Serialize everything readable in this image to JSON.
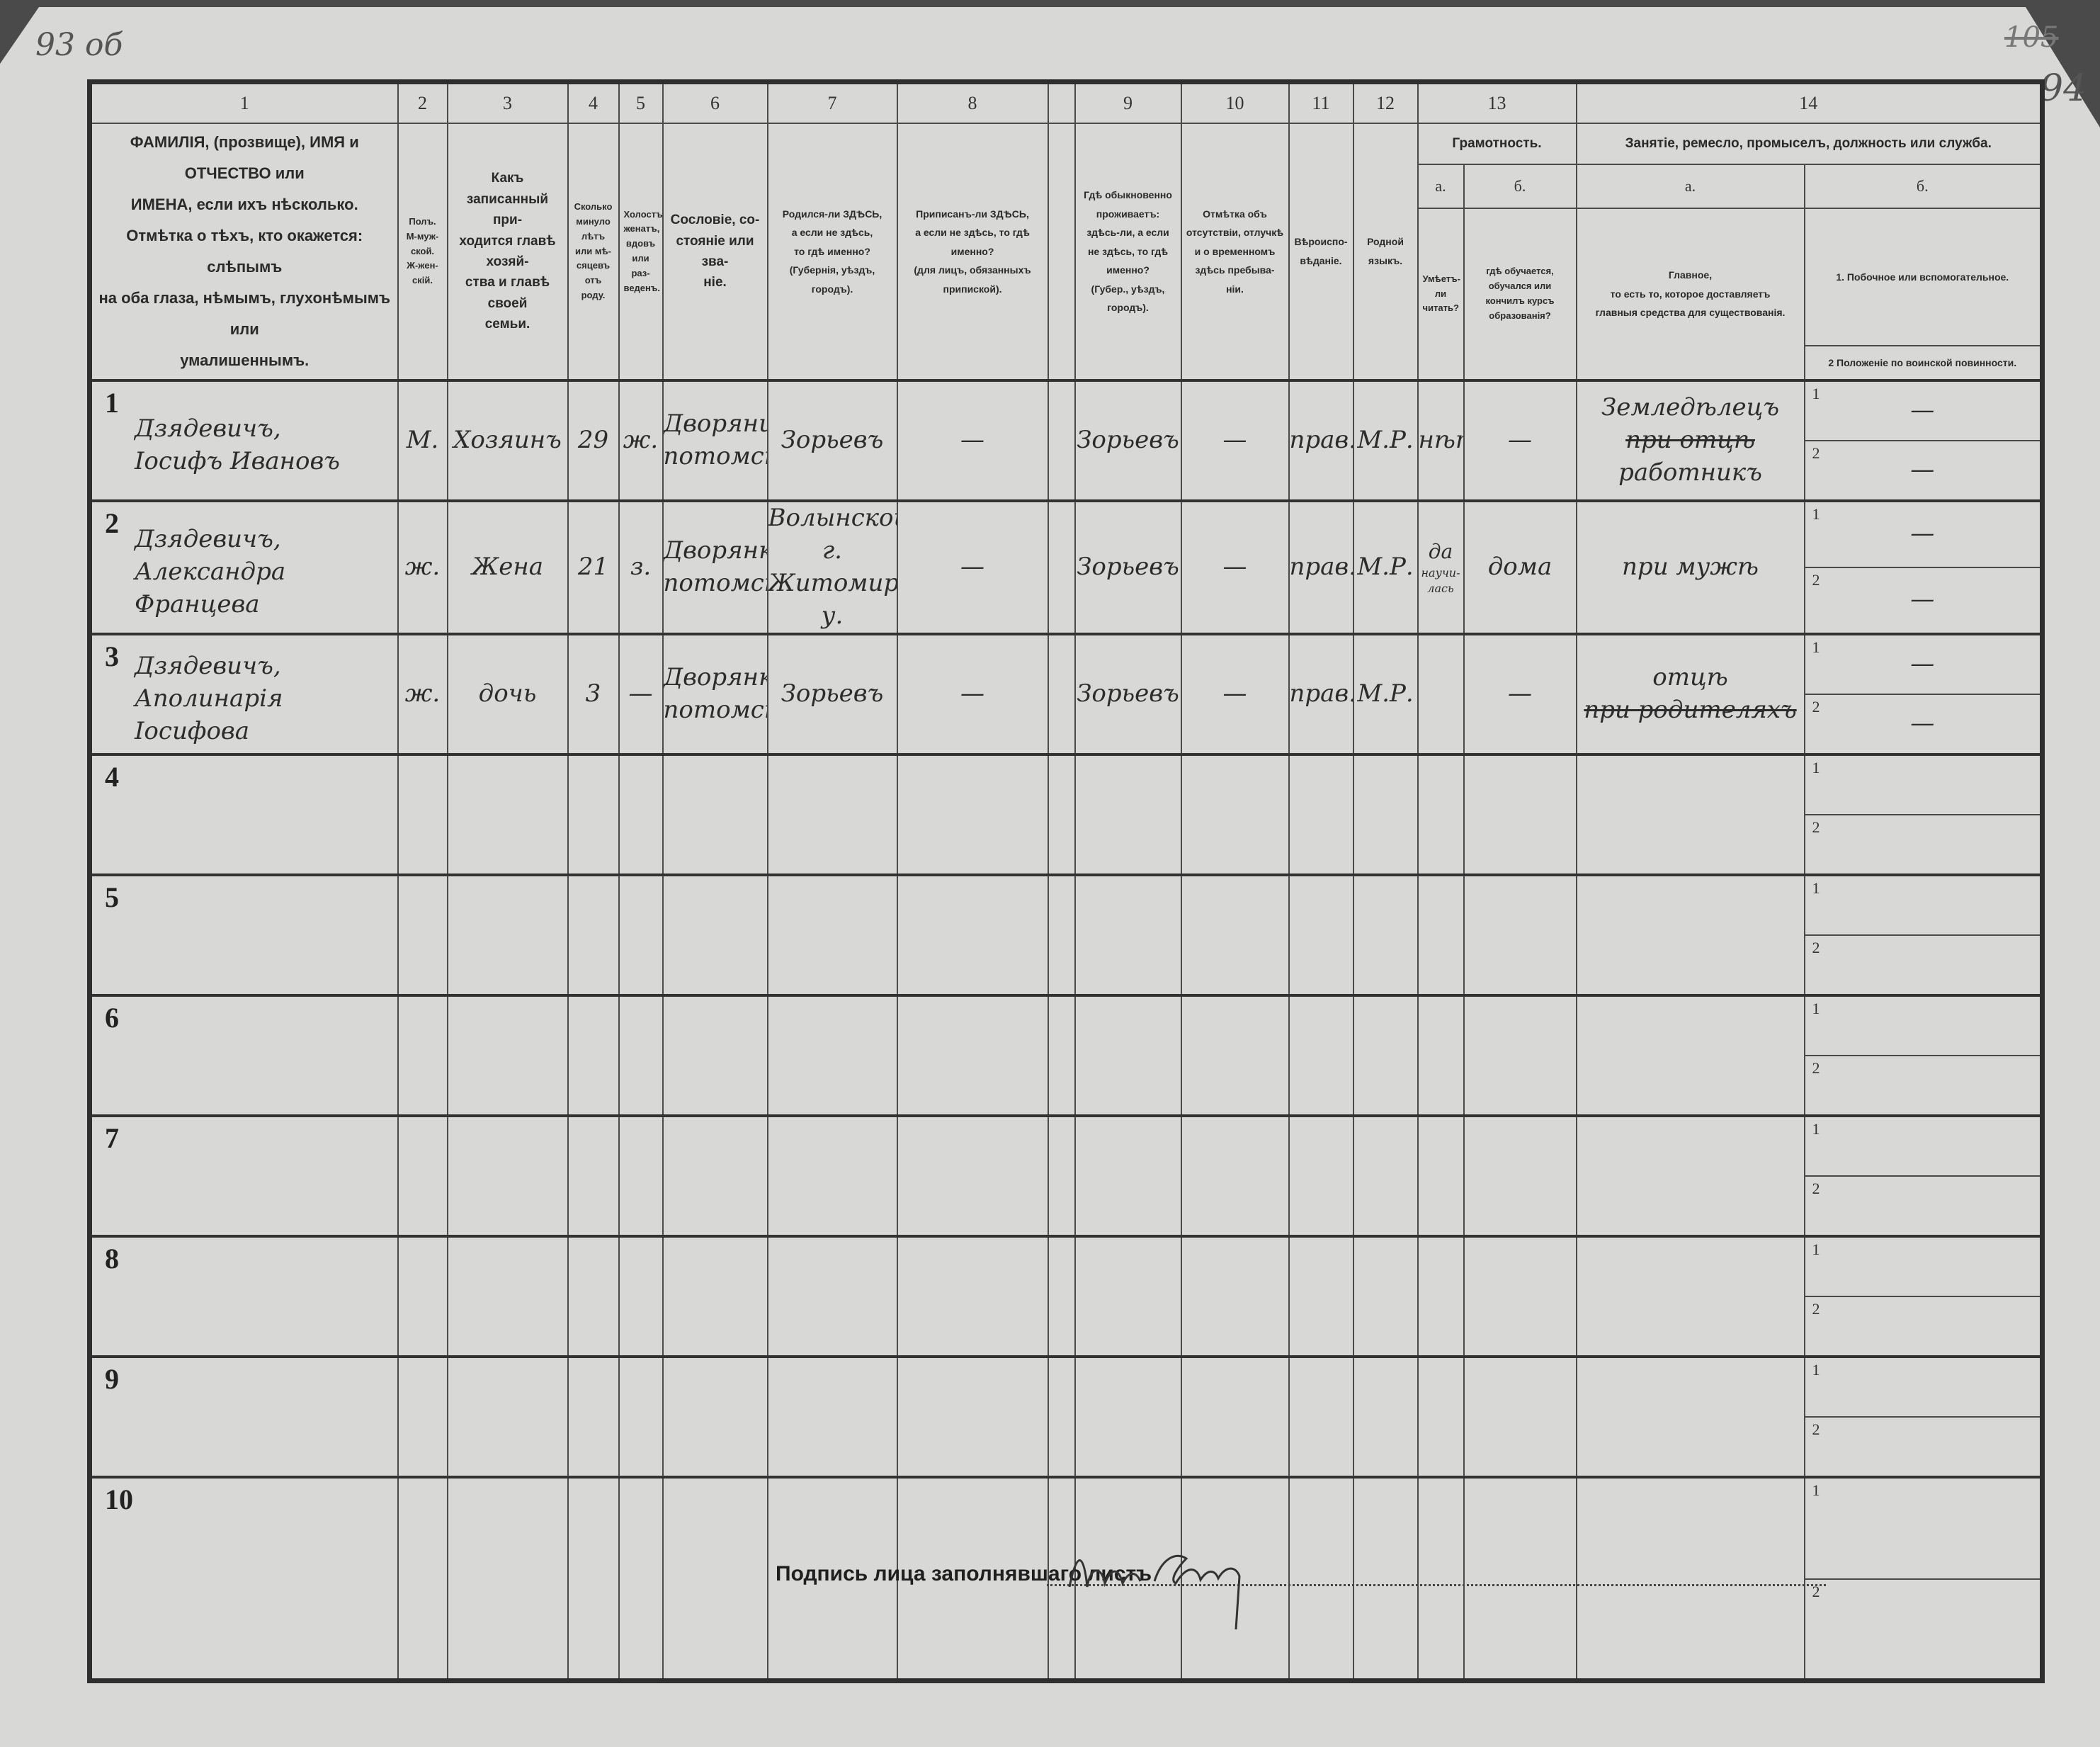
{
  "archive_marks": {
    "top_left": "93 об",
    "top_right_struck": "105",
    "top_right": "94"
  },
  "header": {
    "numbers": [
      "1",
      "2",
      "3",
      "4",
      "5",
      "6",
      "7",
      "8",
      "9",
      "10",
      "11",
      "12",
      "13",
      "14"
    ],
    "col1": [
      "ФАМИЛІЯ, (прозвище), ИМЯ и ОТЧЕСТВО или",
      "ИМЕНА, если ихъ нѣсколько.",
      "Отмѣтка о тѣхъ, кто окажется: слѣпымъ",
      "на оба глаза, нѣмымъ, глухонѣмымъ или",
      "умалишеннымъ."
    ],
    "col2": [
      "Полъ.",
      "М-муж-",
      "ской.",
      "Ж-жен-",
      "скій."
    ],
    "col3": [
      "Какъ записанный при-",
      "ходится главѣ хозяй-",
      "ства и главѣ своей",
      "семьи."
    ],
    "col4": [
      "Сколько",
      "минуло",
      "лѣтъ",
      "или мѣ-",
      "сяцевъ",
      "отъ роду."
    ],
    "col5": [
      "Холостъ,",
      "женатъ,",
      "вдовъ",
      "или раз-",
      "веденъ."
    ],
    "col6": [
      "Сословіе, со-",
      "стояніе или зва-",
      "ніе."
    ],
    "col7": [
      "Родился-ли ЗДѢСЬ,",
      "а если не здѣсь,",
      "то гдѣ именно?",
      "(Губернія, уѣздъ, городъ)."
    ],
    "col8": [
      "Приписанъ-ли ЗДѢСЬ,",
      "а если не здѣсь, то гдѣ",
      "именно?",
      "(для лицъ, обязанныхъ",
      "припиской)."
    ],
    "col9": [
      "Гдѣ обыкновенно",
      "проживаетъ:",
      "здѣсь-ли, а если",
      "не здѣсь, то гдѣ",
      "именно?",
      "(Губер., уѣздъ, городъ)."
    ],
    "col10": [
      "Отмѣтка объ",
      "отсутствіи, отлучкѣ",
      "и о временномъ",
      "здѣсь пребыва-",
      "ніи."
    ],
    "col11": [
      "Вѣроиспо-",
      "вѣданіе."
    ],
    "col12": [
      "Родной",
      "языкъ."
    ],
    "col13": {
      "title": "Грамотность.",
      "a": "а.",
      "b": "б.",
      "a_text": [
        "Умѣетъ-",
        "ли",
        "читать?"
      ],
      "b_text": [
        "гдѣ обучается,",
        "обучался или",
        "кончилъ курсъ",
        "образованія?"
      ]
    },
    "col14": {
      "title": "Занятіе, ремесло, промыселъ, должность или служба.",
      "a": "а.",
      "b": "б.",
      "a_text": [
        "Главное,",
        "то есть то, которое доставляетъ",
        "главныя средства для существованія."
      ],
      "b1": "1. Побочное или вспомогательное.",
      "b2": "2 Положеніе по воинской повинности."
    }
  },
  "sub_labels": [
    "1",
    "2"
  ],
  "rows": [
    {
      "num": "1",
      "name": [
        "Дзядевичъ,",
        "Іосифъ Ивановъ"
      ],
      "sex": [
        "М."
      ],
      "relation": [
        "Хозяинъ"
      ],
      "age": [
        "29"
      ],
      "marital": [
        "ж."
      ],
      "estate": [
        "Дворянинъ",
        "потомств."
      ],
      "birthplace": [
        "Зорьевъ"
      ],
      "registered": [
        "—"
      ],
      "residence": [
        "Зорьевъ"
      ],
      "absence": [
        "—"
      ],
      "religion": [
        "прав."
      ],
      "language": [
        "М.Р."
      ],
      "literate": [
        "нѣтъ"
      ],
      "education": [
        "—"
      ],
      "occupation_main": [
        "Земледѣлецъ",
        {
          "text": "при отцѣ",
          "struck": true
        },
        "работникъ"
      ],
      "occupation_side": "—",
      "military": "—"
    },
    {
      "num": "2",
      "name": [
        "Дзядевичъ,",
        "Александра Францева"
      ],
      "sex": [
        "ж."
      ],
      "relation": [
        "Жена"
      ],
      "age": [
        "21"
      ],
      "marital": [
        "з."
      ],
      "estate": [
        "Дворянка",
        "потомств."
      ],
      "birthplace": [
        "Волынской г.",
        "Житомир. у."
      ],
      "registered": [
        "—"
      ],
      "residence": [
        "Зорьевъ"
      ],
      "absence": [
        "—"
      ],
      "religion": [
        "прав."
      ],
      "language": [
        "М.Р."
      ],
      "literate": [
        "да",
        "научи-",
        "лась"
      ],
      "education": [
        "дома"
      ],
      "occupation_main": [
        "при мужѣ"
      ],
      "occupation_side": "—",
      "military": "—"
    },
    {
      "num": "3",
      "name": [
        "Дзядевичъ,",
        "Аполинарія Іосифова"
      ],
      "sex": [
        "ж."
      ],
      "relation": [
        "дочь"
      ],
      "age": [
        "3"
      ],
      "marital": [
        "—"
      ],
      "estate": [
        "Дворянка",
        "потомств."
      ],
      "birthplace": [
        "Зорьевъ"
      ],
      "registered": [
        "—"
      ],
      "residence": [
        "Зорьевъ"
      ],
      "absence": [
        "—"
      ],
      "religion": [
        "прав."
      ],
      "language": [
        "М.Р."
      ],
      "literate": [],
      "education": [
        "—"
      ],
      "occupation_main": [
        "отцѣ",
        {
          "text": "при родителяхъ",
          "struck": true
        }
      ],
      "occupation_side": "—",
      "military": "—"
    },
    {
      "num": "4"
    },
    {
      "num": "5"
    },
    {
      "num": "6"
    },
    {
      "num": "7"
    },
    {
      "num": "8"
    },
    {
      "num": "9"
    },
    {
      "num": "10"
    }
  ],
  "footer": {
    "signature_label": "Подпись лица заполнявшаго листъ"
  }
}
